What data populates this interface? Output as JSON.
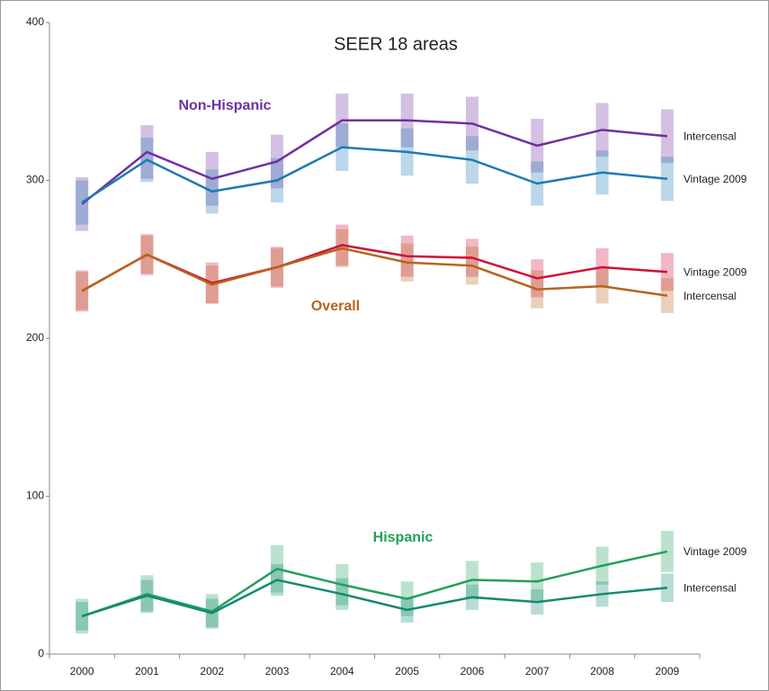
{
  "chart_data": {
    "type": "line",
    "title": "SEER 18 areas",
    "categories": [
      "2000",
      "2001",
      "2002",
      "2003",
      "2004",
      "2005",
      "2006",
      "2007",
      "2008",
      "2009"
    ],
    "ylim": [
      0,
      400
    ],
    "yticks": [
      0,
      100,
      200,
      300,
      400
    ],
    "grid": false,
    "series": [
      {
        "name": "Intercensal",
        "color": "#7030a0",
        "values": [
          285,
          318,
          301,
          312,
          338,
          338,
          336,
          322,
          332,
          328
        ],
        "errors": [
          17,
          17,
          17,
          17,
          17,
          17,
          17,
          17,
          17,
          17
        ]
      },
      {
        "name": "Vintage 2009",
        "color": "#1f7ab5",
        "values": [
          286,
          313,
          293,
          300,
          321,
          318,
          313,
          298,
          305,
          301
        ],
        "errors": [
          14,
          14,
          14,
          14,
          15,
          15,
          15,
          14,
          14,
          14
        ]
      },
      {
        "name": "Vintage 2009",
        "color": "#d0103a",
        "values": [
          230,
          253,
          235,
          245,
          259,
          252,
          251,
          238,
          245,
          242
        ],
        "errors": [
          13,
          13,
          13,
          13,
          13,
          13,
          12,
          12,
          12,
          12
        ]
      },
      {
        "name": "Intercensal",
        "color": "#b5651d",
        "values": [
          230,
          253,
          234,
          245,
          257,
          248,
          246,
          231,
          233,
          227
        ],
        "errors": [
          12,
          12,
          12,
          12,
          12,
          12,
          12,
          12,
          11,
          11
        ]
      },
      {
        "name": "Vintage 2009",
        "color": "#22a05a",
        "values": [
          24,
          38,
          27,
          54,
          44,
          35,
          47,
          46,
          56,
          65
        ],
        "errors": [
          11,
          12,
          11,
          15,
          13,
          11,
          12,
          12,
          12,
          13
        ]
      },
      {
        "name": "Intercensal",
        "color": "#138a72",
        "values": [
          24,
          37,
          26,
          47,
          38,
          28,
          36,
          33,
          38,
          42
        ],
        "errors": [
          9,
          10,
          9,
          10,
          10,
          8,
          8,
          8,
          8,
          9
        ]
      }
    ],
    "annotations": [
      {
        "text": "Non-Hispanic",
        "color": "#7030a0"
      },
      {
        "text": "Overall",
        "color": "#b5651d"
      },
      {
        "text": "Hispanic",
        "color": "#22a05a"
      }
    ]
  }
}
